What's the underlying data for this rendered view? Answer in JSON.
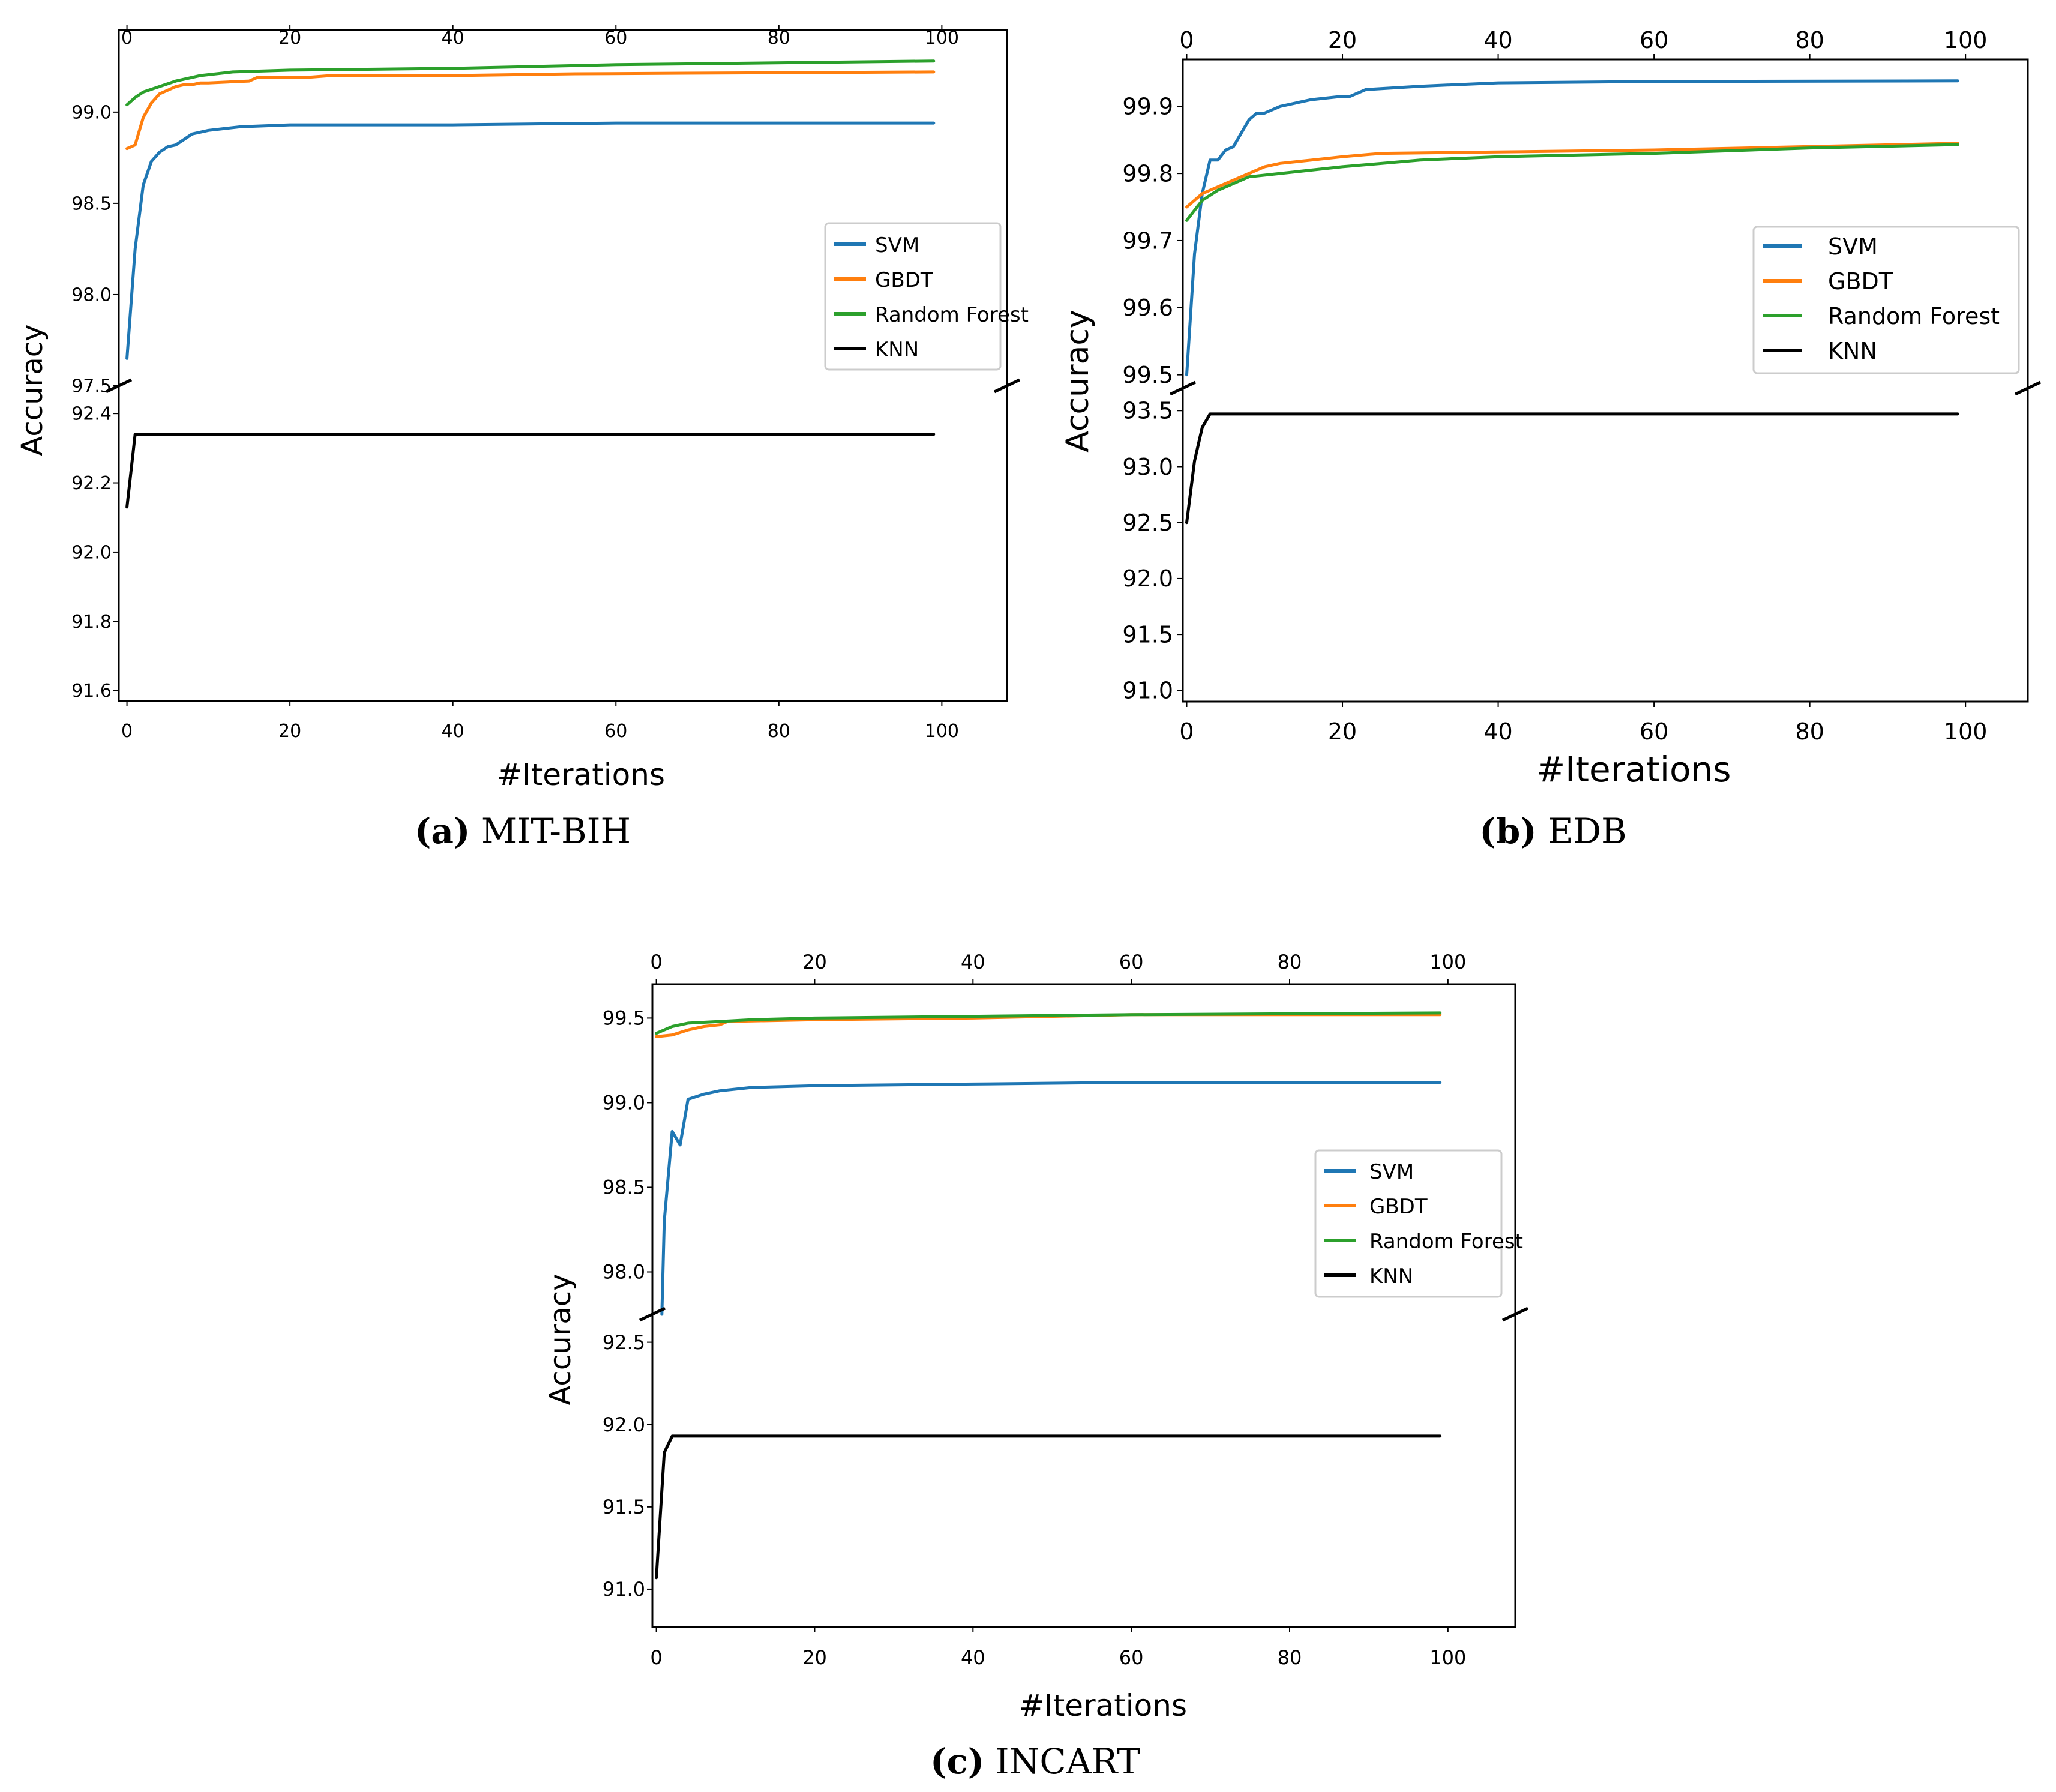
{
  "chart_data": [
    {
      "type": "line",
      "caption_letter": "(a)",
      "caption_text": "MIT-BIH",
      "xlabel": "#Iterations",
      "ylabel": "Accuracy",
      "x_ticks": [
        "0",
        "20",
        "40",
        "60",
        "80",
        "100"
      ],
      "xlim": [
        -1,
        108
      ],
      "broken_y_axis": true,
      "upper": {
        "ylim": [
          97.5,
          99.45
        ],
        "ticks": [
          "97.5",
          "98.0",
          "98.5",
          "99.0"
        ],
        "tick_values": [
          97.5,
          98.0,
          98.5,
          99.0
        ]
      },
      "lower": {
        "ylim": [
          91.57,
          92.48
        ],
        "ticks": [
          "91.6",
          "91.8",
          "92.0",
          "92.2",
          "92.4"
        ],
        "tick_values": [
          91.6,
          91.8,
          92.0,
          92.2,
          92.4
        ]
      },
      "legend": {
        "position": "center-right",
        "entries": [
          "SVM",
          "GBDT",
          "Random Forest",
          "KNN"
        ]
      },
      "series": [
        {
          "name": "SVM",
          "color": "#1f77b4",
          "panel": "upper",
          "x": [
            0,
            1,
            2,
            3,
            4,
            5,
            6,
            7,
            8,
            10,
            14,
            20,
            40,
            60,
            99
          ],
          "y": [
            97.65,
            98.25,
            98.6,
            98.73,
            98.78,
            98.81,
            98.82,
            98.85,
            98.88,
            98.9,
            98.92,
            98.93,
            98.93,
            98.94,
            98.94
          ]
        },
        {
          "name": "GBDT",
          "color": "#ff7f0e",
          "panel": "upper",
          "x": [
            0,
            1,
            2,
            3,
            4,
            5,
            6,
            7,
            8,
            9,
            10,
            15,
            16,
            22,
            25,
            40,
            55,
            99
          ],
          "y": [
            98.8,
            98.82,
            98.97,
            99.05,
            99.1,
            99.12,
            99.14,
            99.15,
            99.15,
            99.16,
            99.16,
            99.17,
            99.19,
            99.19,
            99.2,
            99.2,
            99.21,
            99.22
          ]
        },
        {
          "name": "Random Forest",
          "color": "#2ca02c",
          "panel": "upper",
          "x": [
            0,
            1,
            2,
            4,
            6,
            9,
            13,
            20,
            40,
            60,
            99
          ],
          "y": [
            99.04,
            99.08,
            99.11,
            99.14,
            99.17,
            99.2,
            99.22,
            99.23,
            99.24,
            99.26,
            99.28
          ]
        },
        {
          "name": "KNN",
          "color": "#000000",
          "panel": "lower",
          "x": [
            0,
            1,
            99
          ],
          "y": [
            92.13,
            92.34,
            92.34
          ]
        }
      ]
    },
    {
      "type": "line",
      "caption_letter": "(b)",
      "caption_text": "EDB",
      "xlabel": "#Iterations",
      "ylabel": "Accuracy",
      "x_ticks": [
        "0",
        "20",
        "40",
        "60",
        "80",
        "100"
      ],
      "xlim": [
        -0.5,
        108
      ],
      "broken_y_axis": true,
      "upper": {
        "ylim": [
          99.48,
          99.97
        ],
        "ticks": [
          "99.5",
          "99.6",
          "99.7",
          "99.8",
          "99.9"
        ],
        "tick_values": [
          99.5,
          99.6,
          99.7,
          99.8,
          99.9
        ]
      },
      "lower": {
        "ylim": [
          90.9,
          93.7
        ],
        "ticks": [
          "91.0",
          "91.5",
          "92.0",
          "92.5",
          "93.0",
          "93.5"
        ],
        "tick_values": [
          91.0,
          91.5,
          92.0,
          92.5,
          93.0,
          93.5
        ]
      },
      "legend": {
        "position": "center-right",
        "entries": [
          "SVM",
          "GBDT",
          "Random Forest",
          "KNN"
        ]
      },
      "series": [
        {
          "name": "SVM",
          "color": "#1f77b4",
          "panel": "upper",
          "x": [
            0,
            1,
            2,
            3,
            4,
            5,
            6,
            7,
            8,
            9,
            10,
            12,
            16,
            20,
            21,
            23,
            30,
            40,
            60,
            99
          ],
          "y": [
            99.5,
            99.68,
            99.77,
            99.82,
            99.82,
            99.835,
            99.84,
            99.86,
            99.88,
            99.89,
            99.89,
            99.9,
            99.91,
            99.915,
            99.915,
            99.925,
            99.93,
            99.935,
            99.937,
            99.938
          ]
        },
        {
          "name": "GBDT",
          "color": "#ff7f0e",
          "panel": "upper",
          "x": [
            0,
            1,
            2,
            4,
            6,
            8,
            10,
            12,
            16,
            20,
            25,
            40,
            60,
            99
          ],
          "y": [
            99.75,
            99.76,
            99.77,
            99.78,
            99.79,
            99.8,
            99.81,
            99.815,
            99.82,
            99.825,
            99.83,
            99.832,
            99.835,
            99.845
          ]
        },
        {
          "name": "Random Forest",
          "color": "#2ca02c",
          "panel": "upper",
          "x": [
            0,
            2,
            4,
            6,
            8,
            12,
            20,
            30,
            40,
            60,
            80,
            99
          ],
          "y": [
            99.73,
            99.76,
            99.775,
            99.785,
            99.795,
            99.8,
            99.81,
            99.82,
            99.825,
            99.83,
            99.838,
            99.843
          ]
        },
        {
          "name": "KNN",
          "color": "#000000",
          "panel": "lower",
          "x": [
            0,
            1,
            2,
            3,
            99
          ],
          "y": [
            92.5,
            93.05,
            93.35,
            93.47,
            93.47
          ]
        }
      ]
    },
    {
      "type": "line",
      "caption_letter": "(c)",
      "caption_text": "INCART",
      "xlabel": "#Iterations",
      "ylabel": "Accuracy",
      "x_ticks": [
        "0",
        "20",
        "40",
        "60",
        "80",
        "100"
      ],
      "xlim": [
        -0.5,
        108.5
      ],
      "broken_y_axis": true,
      "upper": {
        "ylim": [
          97.75,
          99.7
        ],
        "ticks": [
          "98.0",
          "98.5",
          "99.0",
          "99.5"
        ],
        "tick_values": [
          98.0,
          98.5,
          99.0,
          99.5
        ]
      },
      "lower": {
        "ylim": [
          90.77,
          92.67
        ],
        "ticks": [
          "91.0",
          "91.5",
          "92.0",
          "92.5"
        ],
        "tick_values": [
          91.0,
          91.5,
          92.0,
          92.5
        ]
      },
      "legend": {
        "position": "center-right",
        "entries": [
          "SVM",
          "GBDT",
          "Random Forest",
          "KNN"
        ]
      },
      "series": [
        {
          "name": "SVM",
          "color": "#1f77b4",
          "panel": "upper",
          "x": [
            0.7,
            1,
            2,
            3,
            4,
            6,
            8,
            12,
            20,
            40,
            60,
            99
          ],
          "y": [
            97.75,
            98.3,
            98.83,
            98.75,
            99.02,
            99.05,
            99.07,
            99.09,
            99.1,
            99.11,
            99.12,
            99.12
          ]
        },
        {
          "name": "GBDT",
          "color": "#ff7f0e",
          "panel": "upper",
          "x": [
            0,
            2,
            4,
            6,
            8,
            9,
            20,
            40,
            60,
            99
          ],
          "y": [
            99.39,
            99.4,
            99.43,
            99.45,
            99.46,
            99.48,
            99.49,
            99.5,
            99.52,
            99.52
          ]
        },
        {
          "name": "Random Forest",
          "color": "#2ca02c",
          "panel": "upper",
          "x": [
            0,
            2,
            4,
            8,
            12,
            20,
            40,
            60,
            99
          ],
          "y": [
            99.41,
            99.45,
            99.47,
            99.48,
            99.49,
            99.5,
            99.51,
            99.52,
            99.53
          ]
        },
        {
          "name": "KNN",
          "color": "#000000",
          "panel": "lower",
          "x": [
            0,
            1,
            2,
            99
          ],
          "y": [
            91.07,
            91.83,
            91.93,
            91.93
          ]
        }
      ]
    }
  ]
}
